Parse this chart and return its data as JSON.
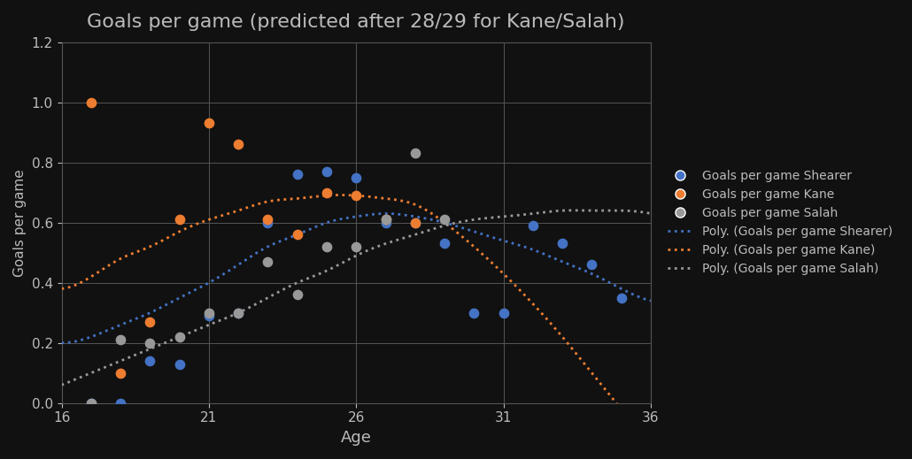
{
  "title": "Goals per game (predicted after 28/29 for Kane/Salah)",
  "xlabel": "Age",
  "ylabel": "Goals per game",
  "xlim": [
    16,
    36
  ],
  "ylim": [
    0,
    1.2
  ],
  "xticks": [
    16,
    21,
    26,
    31,
    36
  ],
  "yticks": [
    0,
    0.2,
    0.4,
    0.6,
    0.8,
    1.0,
    1.2
  ],
  "background_color": "#111111",
  "text_color": "#bbbbbb",
  "grid_color": "#555555",
  "shearer_color": "#4472c4",
  "kane_color": "#ed7d31",
  "salah_color": "#999999",
  "shearer_ages": [
    17,
    18,
    19,
    20,
    21,
    22,
    23,
    24,
    25,
    26,
    27,
    28,
    29,
    30,
    31,
    32,
    33,
    34,
    35
  ],
  "shearer_goals": [
    0.0,
    0.0,
    0.14,
    0.13,
    0.29,
    0.3,
    0.6,
    0.76,
    0.77,
    0.75,
    0.6,
    0.6,
    0.53,
    0.3,
    0.3,
    0.59,
    0.53,
    0.46,
    0.35
  ],
  "kane_ages": [
    17,
    18,
    19,
    20,
    21,
    22,
    23,
    24,
    25,
    26,
    27,
    28
  ],
  "kane_goals": [
    1.0,
    0.1,
    0.27,
    0.61,
    0.93,
    0.86,
    0.61,
    0.56,
    0.7,
    0.69,
    0.61,
    0.6
  ],
  "salah_ages": [
    17,
    18,
    19,
    20,
    21,
    22,
    23,
    24,
    25,
    26,
    27,
    28,
    29
  ],
  "salah_goals": [
    0.0,
    0.21,
    0.2,
    0.22,
    0.3,
    0.3,
    0.47,
    0.36,
    0.52,
    0.52,
    0.61,
    0.83,
    0.61
  ],
  "shearer_curve_ages": [
    16,
    17,
    18,
    19,
    20,
    21,
    22,
    23,
    24,
    25,
    26,
    27,
    28,
    29,
    30,
    31,
    32,
    33,
    34,
    35,
    36
  ],
  "shearer_curve_vals": [
    0.2,
    0.22,
    0.26,
    0.3,
    0.35,
    0.4,
    0.46,
    0.52,
    0.56,
    0.6,
    0.62,
    0.63,
    0.62,
    0.6,
    0.57,
    0.54,
    0.51,
    0.47,
    0.43,
    0.38,
    0.34
  ],
  "kane_curve_ages": [
    16,
    17,
    18,
    19,
    20,
    21,
    22,
    23,
    24,
    25,
    26,
    27,
    28,
    29,
    30,
    31,
    32,
    33,
    34,
    35,
    36
  ],
  "kane_curve_vals": [
    0.38,
    0.42,
    0.48,
    0.52,
    0.57,
    0.61,
    0.64,
    0.67,
    0.68,
    0.69,
    0.69,
    0.68,
    0.66,
    0.6,
    0.52,
    0.43,
    0.33,
    0.22,
    0.1,
    -0.02,
    -0.15
  ],
  "salah_curve_ages": [
    16,
    17,
    18,
    19,
    20,
    21,
    22,
    23,
    24,
    25,
    26,
    27,
    28,
    29,
    30,
    31,
    32,
    33,
    34,
    35,
    36
  ],
  "salah_curve_vals": [
    0.06,
    0.1,
    0.14,
    0.18,
    0.22,
    0.26,
    0.3,
    0.35,
    0.4,
    0.44,
    0.49,
    0.53,
    0.56,
    0.59,
    0.61,
    0.62,
    0.63,
    0.64,
    0.64,
    0.64,
    0.63
  ],
  "legend_labels": [
    "Goals per game Shearer",
    "Goals per game Kane",
    "Goals per game Salah",
    "Poly. (Goals per game Shearer)",
    "Poly. (Goals per game Kane)",
    "Poly. (Goals per game Salah)"
  ]
}
